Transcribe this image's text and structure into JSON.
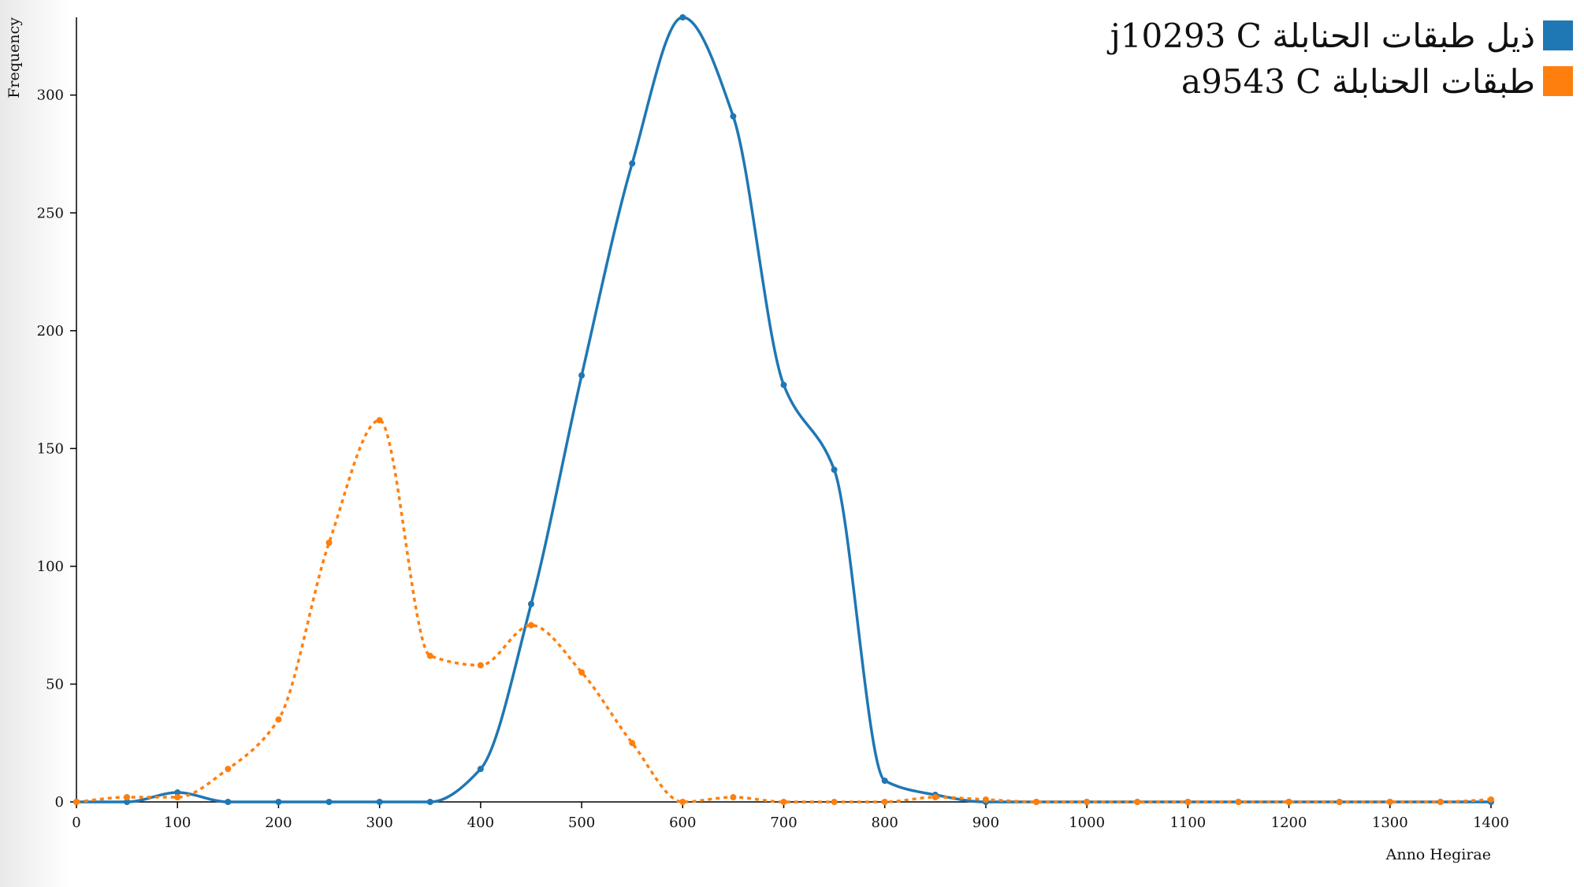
{
  "chart_data": {
    "type": "line",
    "xlabel": "Anno Hegirae",
    "ylabel": "Frequency",
    "xlim": [
      0,
      1400
    ],
    "ylim": [
      0,
      333
    ],
    "x_ticks": [
      0,
      100,
      200,
      300,
      400,
      500,
      600,
      700,
      800,
      900,
      1000,
      1100,
      1200,
      1300,
      1400
    ],
    "y_ticks": [
      0,
      50,
      100,
      150,
      200,
      250,
      300
    ],
    "grid": false,
    "legend_position": "top-right",
    "x": [
      0,
      50,
      100,
      150,
      200,
      250,
      300,
      350,
      400,
      450,
      500,
      550,
      600,
      650,
      700,
      750,
      800,
      850,
      900,
      950,
      1000,
      1050,
      1100,
      1150,
      1200,
      1250,
      1300,
      1350,
      1400
    ],
    "series": [
      {
        "name": "ذيل طبقات الحنابلة j10293 C",
        "color": "#1f77b4",
        "dashed": false,
        "values": [
          0,
          0,
          4,
          0,
          0,
          0,
          0,
          0,
          14,
          84,
          181,
          271,
          333,
          291,
          177,
          141,
          9,
          3,
          0,
          0,
          0,
          0,
          0,
          0,
          0,
          0,
          0,
          0,
          0
        ]
      },
      {
        "name": "طبقات الحنابلة a9543 C",
        "color": "#ff7f0e",
        "dashed": true,
        "values": [
          0,
          2,
          2,
          14,
          35,
          110,
          162,
          62,
          58,
          75,
          55,
          25,
          0,
          2,
          0,
          0,
          0,
          2,
          1,
          0,
          0,
          0,
          0,
          0,
          0,
          0,
          0,
          0,
          1
        ]
      }
    ]
  }
}
